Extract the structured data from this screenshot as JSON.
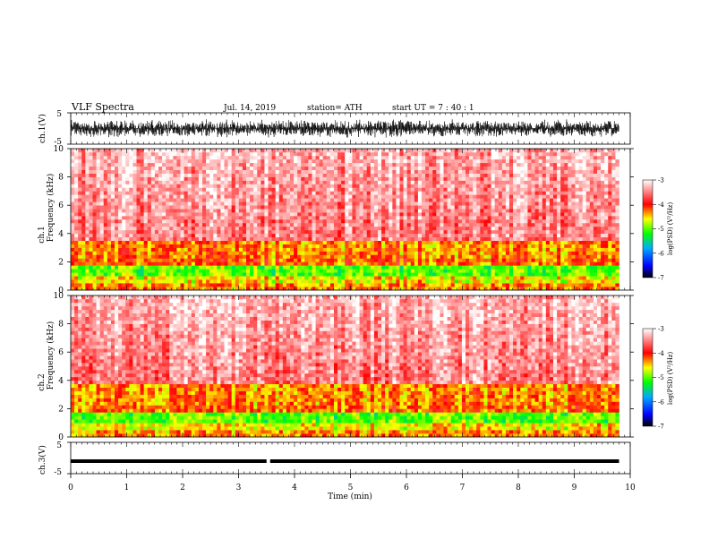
{
  "header": {
    "title": "VLF  Spectra",
    "date": "Jul.  14,  2019",
    "station": "station= ATH",
    "start": "start  UT  =    7  : 40 : 1"
  },
  "chart_data": [
    {
      "type": "line",
      "panel": "ch1-waveform",
      "ylabel": "ch.1(V)",
      "ylim": [
        -5,
        5
      ],
      "yticks": [
        "5",
        "-5"
      ],
      "xlim": [
        0,
        10
      ],
      "description_values": {
        "amplitude_min": -3,
        "amplitude_max": 3
      }
    },
    {
      "type": "heatmap",
      "panel": "ch1-spectrogram",
      "ylabel": [
        "ch.1",
        "Frequency  (kHz)"
      ],
      "ylim": [
        0,
        10
      ],
      "yticks": [
        "0",
        "2",
        "4",
        "6",
        "8",
        "10"
      ],
      "xlim": [
        0,
        9.8
      ],
      "bands": [
        {
          "from": 0,
          "to": 0.5,
          "level": -4.3
        },
        {
          "from": 0.5,
          "to": 1.0,
          "level": -4.6
        },
        {
          "from": 1.0,
          "to": 1.7,
          "level": -5.0
        },
        {
          "from": 1.7,
          "to": 2.2,
          "level": -4.2
        },
        {
          "from": 2.2,
          "to": 3.4,
          "level": -4.3
        },
        {
          "from": 3.4,
          "to": 10,
          "level": -3.5
        }
      ],
      "colorbar": {
        "label": "log(PSD) (V²/Hz)",
        "ticks": [
          "-3",
          "-4",
          "-5",
          "-6",
          "-7"
        ],
        "range": [
          -7,
          -3
        ],
        "colors": [
          "#000000",
          "#0000ff",
          "#00aaff",
          "#00ff00",
          "#ffff00",
          "#ff0000",
          "#ffffff"
        ]
      }
    },
    {
      "type": "heatmap",
      "panel": "ch2-spectrogram",
      "ylabel": [
        "ch.2",
        "Frequency  (kHz)"
      ],
      "ylim": [
        0,
        10
      ],
      "yticks": [
        "0",
        "2",
        "4",
        "6",
        "8",
        "10"
      ],
      "xlim": [
        0,
        9.8
      ],
      "bands": [
        {
          "from": 0,
          "to": 0.5,
          "level": -4.3
        },
        {
          "from": 0.5,
          "to": 1.0,
          "level": -4.6
        },
        {
          "from": 1.0,
          "to": 1.7,
          "level": -5.0
        },
        {
          "from": 1.7,
          "to": 2.2,
          "level": -4.2
        },
        {
          "from": 2.2,
          "to": 3.8,
          "level": -4.3
        },
        {
          "from": 3.8,
          "to": 10,
          "level": -3.5
        }
      ],
      "colorbar": {
        "label": "log(PSD) (V²/Hz)",
        "ticks": [
          "-3",
          "-4",
          "-5",
          "-6",
          "-7"
        ],
        "range": [
          -7,
          -3
        ],
        "colors": [
          "#000000",
          "#0000ff",
          "#00aaff",
          "#00ff00",
          "#ffff00",
          "#ff0000",
          "#ffffff"
        ]
      }
    },
    {
      "type": "line",
      "panel": "ch3-waveform",
      "ylabel": "ch.3(V)",
      "ylim": [
        -5,
        5
      ],
      "yticks": [
        "5",
        "-5"
      ],
      "xlim": [
        0,
        10
      ],
      "description_values": {
        "level": -1.0,
        "gap_at": 3.5
      }
    }
  ],
  "xaxis": {
    "label": "Time  (min)",
    "ticks": [
      "0",
      "1",
      "2",
      "3",
      "4",
      "5",
      "6",
      "7",
      "8",
      "9",
      "10"
    ],
    "range": [
      0,
      10
    ]
  }
}
